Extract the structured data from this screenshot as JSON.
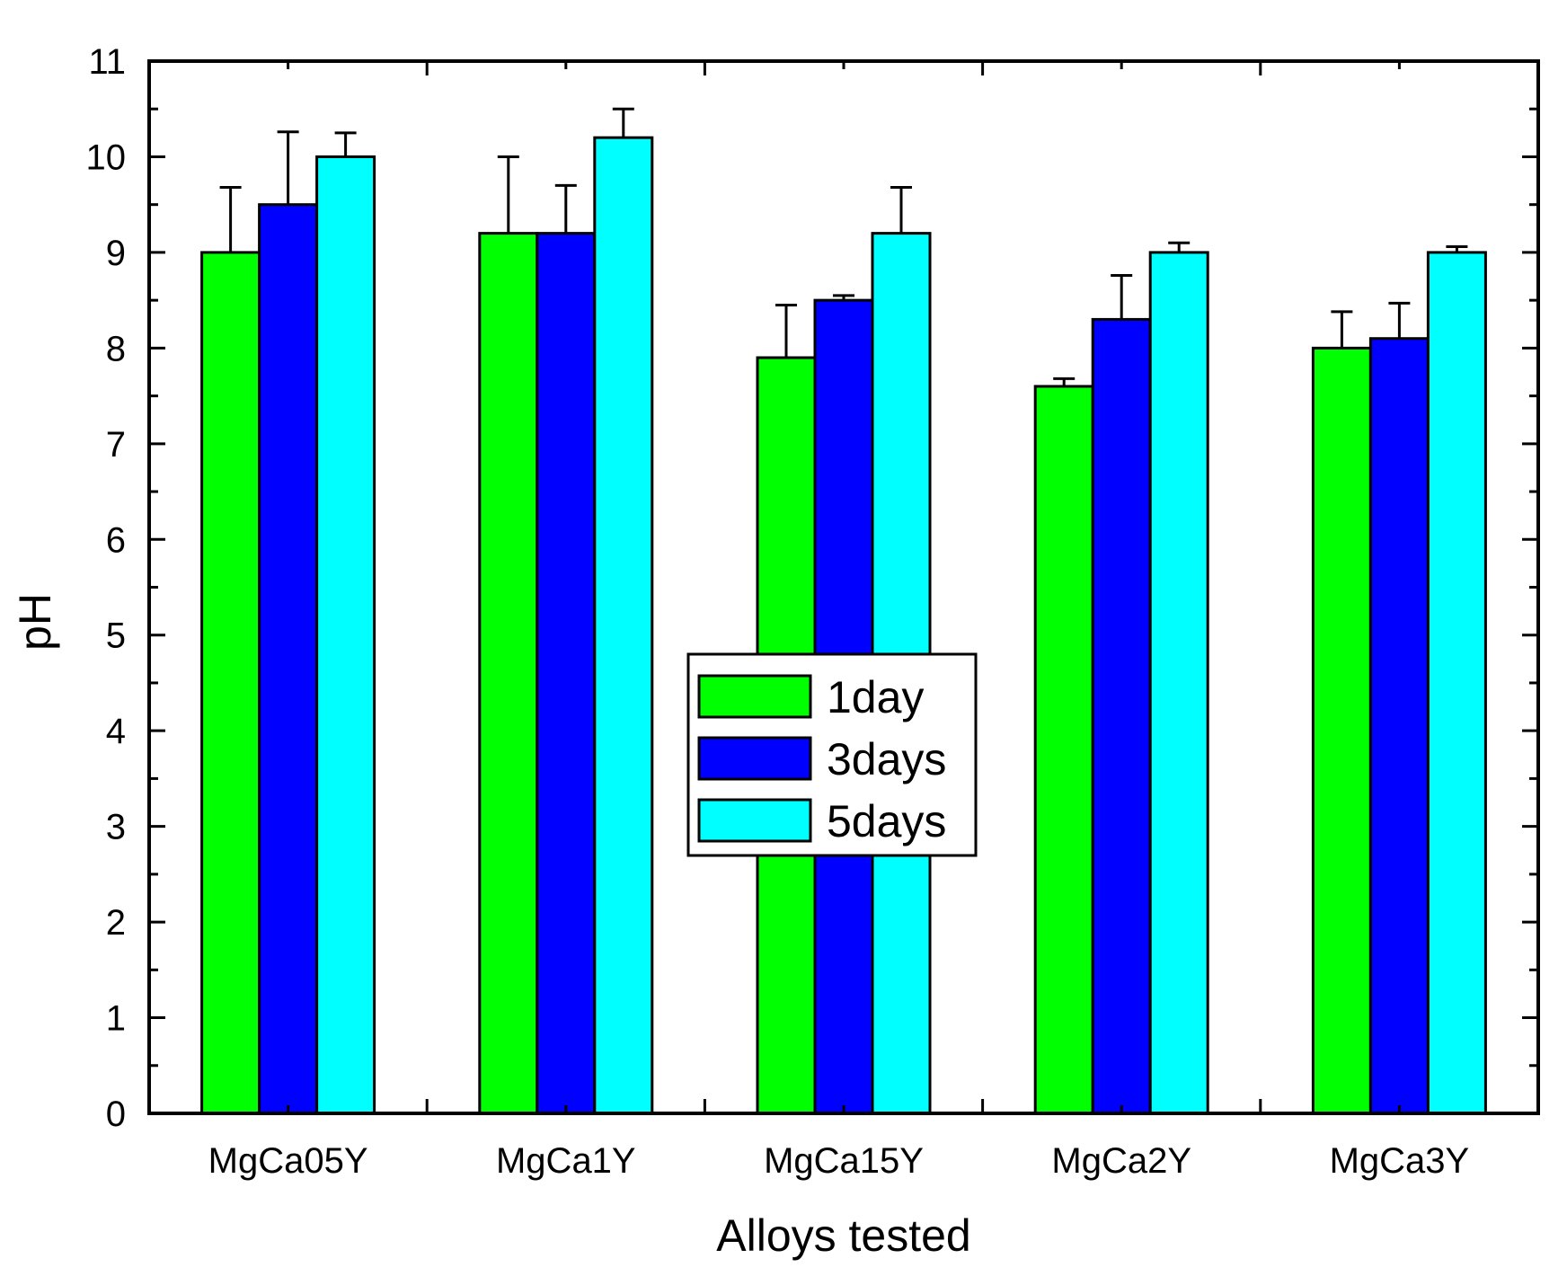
{
  "chart_data": {
    "type": "bar",
    "title": "",
    "xlabel": "Alloys tested",
    "ylabel": "pH",
    "ylim": [
      0,
      11
    ],
    "yticks": [
      "0",
      "1",
      "2",
      "3",
      "4",
      "5",
      "6",
      "7",
      "8",
      "9",
      "10",
      "11"
    ],
    "categories": [
      "MgCa05Y",
      "MgCa1Y",
      "MgCa15Y",
      "MgCa2Y",
      "MgCa3Y"
    ],
    "series": [
      {
        "name": "1day",
        "color": "#00ff00",
        "values": [
          9.0,
          9.2,
          7.9,
          7.6,
          8.0
        ],
        "errors": [
          0.68,
          0.8,
          0.55,
          0.08,
          0.38
        ]
      },
      {
        "name": "3days",
        "color": "#0000ff",
        "values": [
          9.5,
          9.2,
          8.5,
          8.3,
          8.1
        ],
        "errors": [
          0.76,
          0.5,
          0.05,
          0.46,
          0.37
        ]
      },
      {
        "name": "5days",
        "color": "#00ffff",
        "values": [
          10.0,
          10.2,
          9.2,
          9.0,
          9.0
        ],
        "errors": [
          0.25,
          0.3,
          0.48,
          0.1,
          0.06
        ]
      }
    ],
    "legend_position": "center",
    "grid": false
  }
}
